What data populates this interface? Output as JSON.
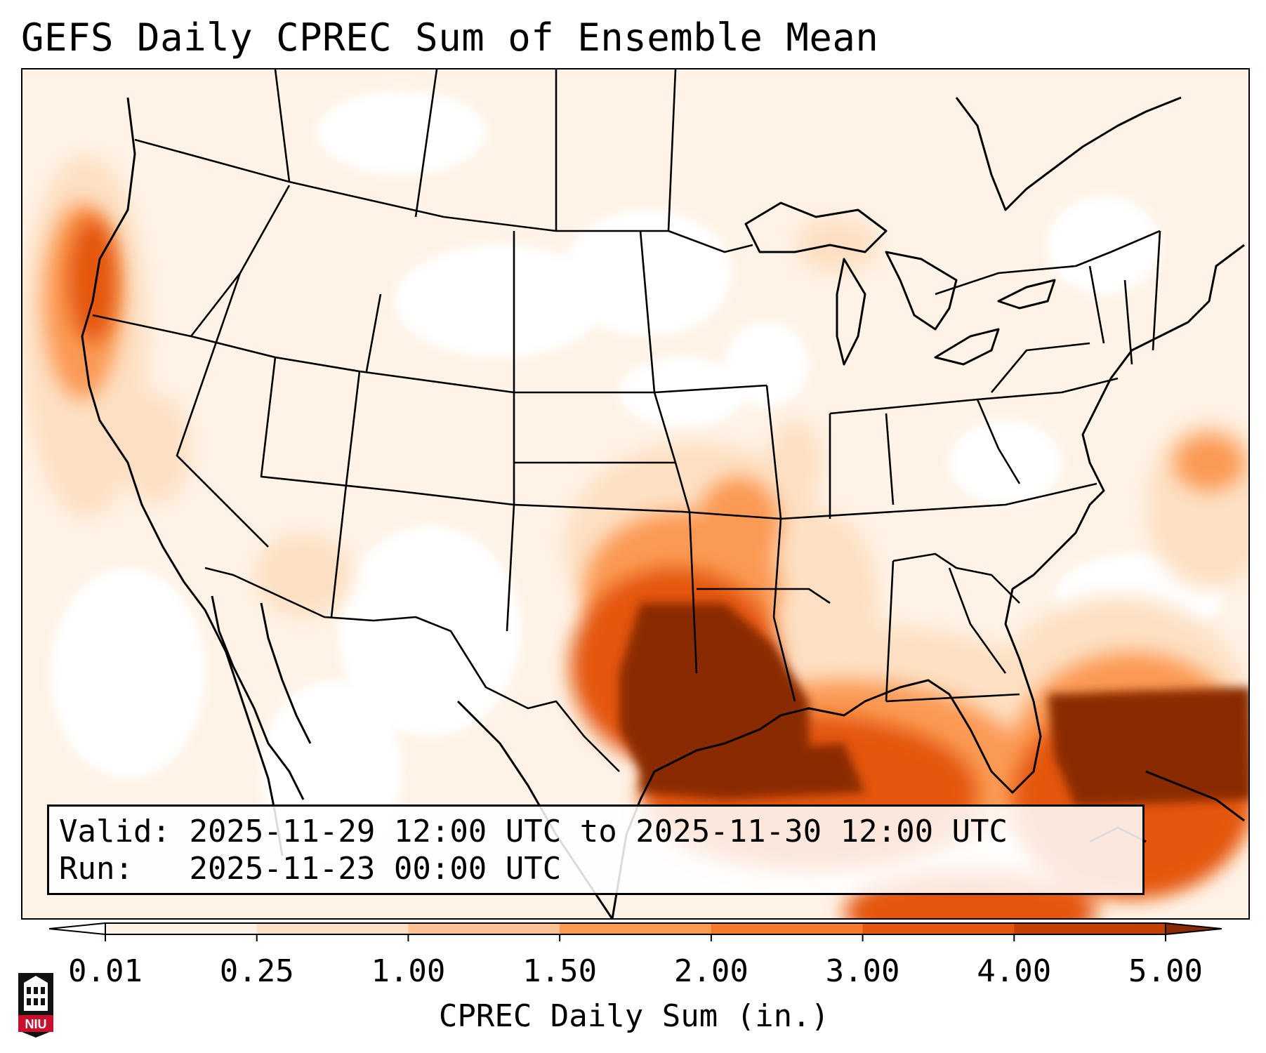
{
  "title": "GEFS Daily CPREC Sum of Ensemble Mean",
  "info": {
    "valid_label": "Valid:",
    "valid_value": "2025-11-29 12:00 UTC to 2025-11-30 12:00 UTC",
    "run_label": "Run:",
    "run_value": "2025-11-23 00:00 UTC"
  },
  "colorbar": {
    "label": "CPREC Daily Sum (in.)",
    "ticks": [
      "0.01",
      "0.25",
      "1.00",
      "1.50",
      "2.00",
      "3.00",
      "4.00",
      "5.00"
    ],
    "colors": [
      "#fff3e7",
      "#fde0c3",
      "#fdc293",
      "#fb9a54",
      "#f67a2b",
      "#e4570d",
      "#c33f03"
    ],
    "under_color": "#ffffff",
    "over_color": "#8a2a04"
  },
  "logo": {
    "text": "NIU",
    "icon": "niu-shield-icon",
    "color": "#c8102e"
  }
}
